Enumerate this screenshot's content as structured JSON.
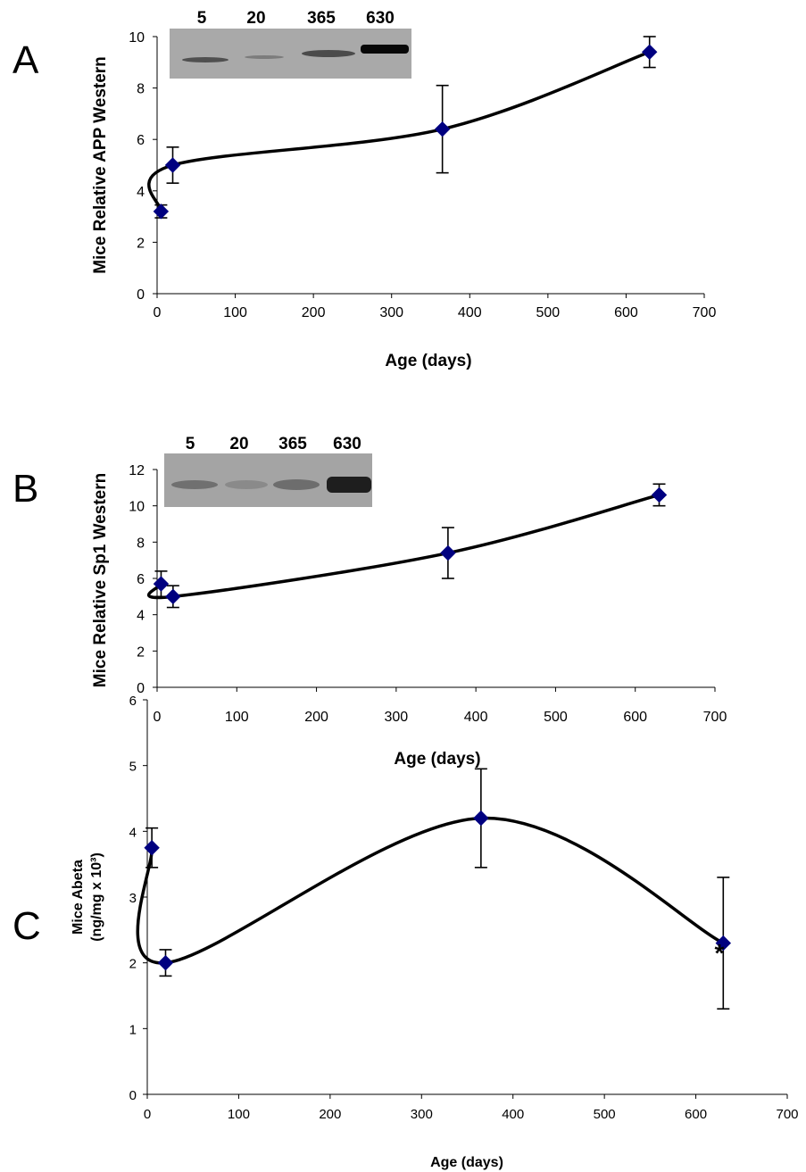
{
  "chart_data": [
    {
      "type": "line",
      "panel": "A",
      "ylabel": "Mice Relative APP Western",
      "xlabel": "Age (days)",
      "xlim": [
        0,
        700
      ],
      "ylim": [
        0,
        10
      ],
      "xticks": [
        "0",
        "100",
        "200",
        "300",
        "400",
        "500",
        "600",
        "700"
      ],
      "yticks": [
        "0",
        "2",
        "4",
        "6",
        "8",
        "10"
      ],
      "series": [
        {
          "x": [
            5,
            20,
            365,
            630
          ],
          "y": [
            3.2,
            5.0,
            6.4,
            9.4
          ],
          "err": [
            0.25,
            0.7,
            1.7,
            0.6
          ]
        }
      ],
      "blot_lanes": [
        "5",
        "20",
        "365",
        "630"
      ],
      "grid": false,
      "marker": "diamond",
      "marker_color": "#000080",
      "line_color": "#000000"
    },
    {
      "type": "line",
      "panel": "B",
      "ylabel": "Mice Relative Sp1 Western",
      "xlabel": "Age (days)",
      "xlim": [
        0,
        700
      ],
      "ylim": [
        0,
        12
      ],
      "xticks": [
        "0",
        "100",
        "200",
        "300",
        "400",
        "500",
        "600",
        "700"
      ],
      "yticks": [
        "0",
        "2",
        "4",
        "6",
        "8",
        "10",
        "12"
      ],
      "series": [
        {
          "x": [
            5,
            20,
            365,
            630
          ],
          "y": [
            5.7,
            5.0,
            7.4,
            10.6
          ],
          "err": [
            0.7,
            0.6,
            1.4,
            0.6
          ]
        }
      ],
      "blot_lanes": [
        "5",
        "20",
        "365",
        "630"
      ],
      "grid": false,
      "marker": "diamond",
      "marker_color": "#000080",
      "line_color": "#000000"
    },
    {
      "type": "line",
      "panel": "C",
      "ylabel": "Mice Abeta",
      "ylabel2": "(ng/mg x 10³)",
      "xlabel": "Age (days)",
      "xlim": [
        0,
        700
      ],
      "ylim": [
        0,
        6
      ],
      "xticks": [
        "0",
        "100",
        "200",
        "300",
        "400",
        "500",
        "600",
        "700"
      ],
      "yticks": [
        "0",
        "1",
        "2",
        "3",
        "4",
        "5",
        "6"
      ],
      "series": [
        {
          "x": [
            5,
            20,
            365,
            630
          ],
          "y": [
            3.75,
            2.0,
            4.2,
            2.3
          ],
          "err": [
            0.3,
            0.2,
            0.75,
            1.0
          ]
        }
      ],
      "annotations": [
        "*"
      ],
      "grid": false,
      "marker": "diamond",
      "marker_color": "#000080",
      "line_color": "#000000"
    }
  ]
}
